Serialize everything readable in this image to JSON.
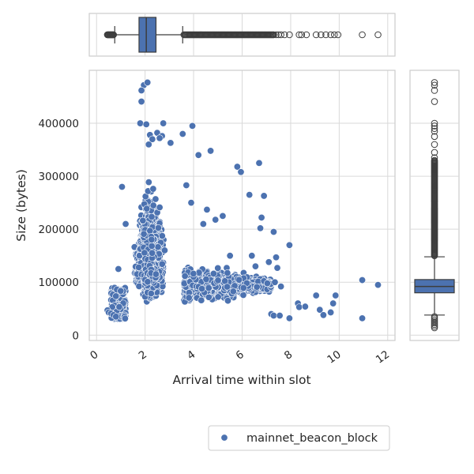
{
  "chart_data": {
    "type": "scatter",
    "title": "",
    "xlabel": "Arrival time within slot",
    "ylabel": "Size (bytes)",
    "xlim": [
      -0.3,
      12.3
    ],
    "ylim": [
      -10000,
      500000
    ],
    "x_ticks": [
      0,
      2,
      4,
      6,
      8,
      10,
      12
    ],
    "y_ticks": [
      0,
      100000,
      200000,
      300000,
      400000
    ],
    "x_tick_labels": [
      "0",
      "2",
      "4",
      "6",
      "8",
      "10",
      "12"
    ],
    "y_tick_labels": [
      "0",
      "100000",
      "200000",
      "300000",
      "400000"
    ],
    "grid": true,
    "legend": {
      "placement": "bottom-right",
      "entries": [
        "mainnet_beacon_block"
      ]
    },
    "color": "#4c72b0",
    "series": [
      {
        "name": "mainnet_beacon_block",
        "approx_count": 4000,
        "density_peak": {
          "x": 2.2,
          "y": 120000
        },
        "points": [
          [
            1.95,
            472000
          ],
          [
            2.1,
            477000
          ],
          [
            1.85,
            462000
          ],
          [
            1.85,
            441000
          ],
          [
            1.8,
            400000
          ],
          [
            2.05,
            398000
          ],
          [
            2.75,
            400000
          ],
          [
            3.95,
            395000
          ],
          [
            2.2,
            378000
          ],
          [
            2.5,
            382000
          ],
          [
            2.7,
            376000
          ],
          [
            3.55,
            380000
          ],
          [
            2.3,
            370000
          ],
          [
            2.6,
            372000
          ],
          [
            2.15,
            360000
          ],
          [
            3.05,
            363000
          ],
          [
            4.7,
            348000
          ],
          [
            4.2,
            340000
          ],
          [
            5.8,
            318000
          ],
          [
            5.95,
            308000
          ],
          [
            6.7,
            325000
          ],
          [
            6.3,
            265000
          ],
          [
            6.9,
            263000
          ],
          [
            6.8,
            222000
          ],
          [
            6.75,
            202000
          ],
          [
            7.3,
            195000
          ],
          [
            7.95,
            170000
          ],
          [
            7.1,
            138000
          ],
          [
            7.4,
            147000
          ],
          [
            7.45,
            127000
          ],
          [
            7.35,
            100000
          ],
          [
            7.6,
            92000
          ],
          [
            7.2,
            40000
          ],
          [
            7.3,
            37000
          ],
          [
            7.55,
            37000
          ],
          [
            7.95,
            32000
          ],
          [
            8.3,
            60000
          ],
          [
            8.35,
            53000
          ],
          [
            8.6,
            54000
          ],
          [
            9.05,
            75000
          ],
          [
            9.2,
            48000
          ],
          [
            9.35,
            38000
          ],
          [
            9.65,
            43000
          ],
          [
            9.75,
            60000
          ],
          [
            9.85,
            75000
          ],
          [
            10.95,
            104000
          ],
          [
            11.6,
            95000
          ],
          [
            10.95,
            32000
          ],
          [
            0.45,
            47000
          ],
          [
            0.5,
            43000
          ],
          [
            0.6,
            41000
          ],
          [
            0.7,
            38000
          ],
          [
            0.8,
            35000
          ],
          [
            0.9,
            125000
          ],
          [
            1.05,
            280000
          ],
          [
            1.2,
            210000
          ],
          [
            6.4,
            150000
          ],
          [
            6.55,
            130000
          ],
          [
            5.5,
            150000
          ],
          [
            5.2,
            225000
          ],
          [
            4.55,
            237000
          ],
          [
            4.9,
            218000
          ],
          [
            4.4,
            210000
          ],
          [
            3.7,
            283000
          ],
          [
            3.9,
            250000
          ]
        ]
      }
    ],
    "marginal_x_boxplot": {
      "q1": 1.75,
      "median": 2.05,
      "q3": 2.45,
      "whisker_low": 0.75,
      "whisker_high": 3.55,
      "outliers": [
        0.45,
        0.5,
        0.55,
        0.6,
        0.65,
        0.7,
        7.3,
        7.4,
        7.5,
        7.6,
        7.75,
        7.95,
        8.35,
        8.45,
        8.65,
        9.05,
        9.25,
        9.45,
        9.65,
        9.8,
        9.95,
        10.95,
        11.6
      ]
    },
    "marginal_y_boxplot": {
      "q1": 80000,
      "median": 92000,
      "q3": 105000,
      "whisker_low": 38000,
      "whisker_high": 148000,
      "outliers": [
        14000,
        17000,
        20000,
        23000,
        26000,
        29000,
        32000,
        35000,
        335000,
        345000,
        360000,
        375000,
        385000,
        390000,
        395000,
        400000,
        441000,
        462000,
        472000,
        477000
      ]
    }
  }
}
